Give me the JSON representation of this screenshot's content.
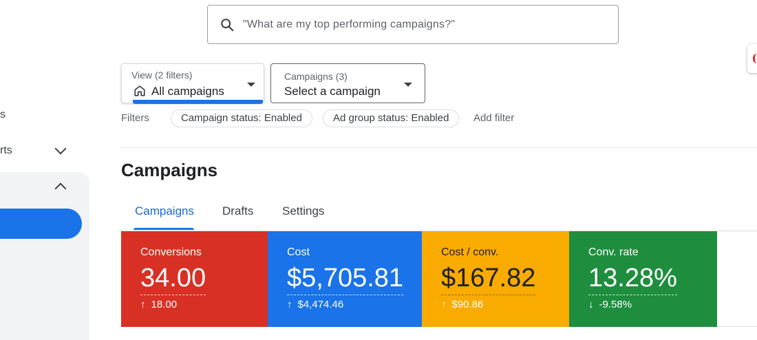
{
  "search": {
    "placeholder": "\"What are my top performing campaigns?\""
  },
  "sidebar": {
    "fragment_1": "s",
    "fragment_2": "rts"
  },
  "view_selector": {
    "label": "View (2 filters)",
    "value": "All campaigns"
  },
  "campaign_selector": {
    "label": "Campaigns (3)",
    "value": "Select a campaign"
  },
  "filters": {
    "label": "Filters",
    "chips": [
      "Campaign status: Enabled",
      "Ad group status: Enabled"
    ],
    "add_label": "Add filter"
  },
  "page_title": "Campaigns",
  "tabs": [
    {
      "label": "Campaigns",
      "active": true
    },
    {
      "label": "Drafts"
    },
    {
      "label": "Settings"
    }
  ],
  "metrics": [
    {
      "label": "Conversions",
      "value": "34.00",
      "delta": "18.00",
      "direction": "up",
      "color": "#d93025"
    },
    {
      "label": "Cost",
      "value": "$5,705.81",
      "delta": "$4,474.46",
      "direction": "up",
      "color": "#1a73e8"
    },
    {
      "label": "Cost / conv.",
      "value": "$167.82",
      "delta": "$90.86",
      "direction": "up",
      "color": "#f9ab00"
    },
    {
      "label": "Conv. rate",
      "value": "13.28%",
      "delta": "-9.58%",
      "direction": "down",
      "color": "#1e8e3e"
    }
  ]
}
